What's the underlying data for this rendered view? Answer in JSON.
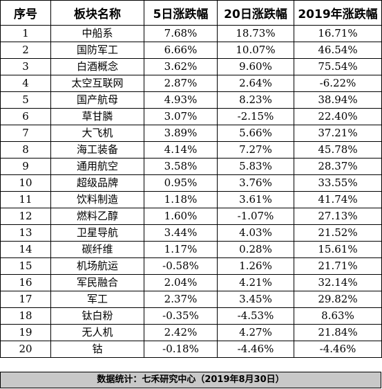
{
  "table": {
    "headers": [
      "序号",
      "板块名称",
      "5日涨跌幅",
      "20日涨跌幅",
      "2019年涨跌幅"
    ],
    "rows": [
      [
        "1",
        "中船系",
        "7.68%",
        "18.73%",
        "16.71%"
      ],
      [
        "2",
        "国防军工",
        "6.66%",
        "10.07%",
        "46.54%"
      ],
      [
        "3",
        "白酒概念",
        "3.62%",
        "9.60%",
        "75.54%"
      ],
      [
        "4",
        "太空互联网",
        "2.87%",
        "2.64%",
        "-6.22%"
      ],
      [
        "5",
        "国产航母",
        "4.93%",
        "8.23%",
        "38.94%"
      ],
      [
        "6",
        "草甘膦",
        "3.07%",
        "-2.15%",
        "22.40%"
      ],
      [
        "7",
        "大飞机",
        "3.89%",
        "5.66%",
        "37.21%"
      ],
      [
        "8",
        "海工装备",
        "4.14%",
        "7.27%",
        "45.78%"
      ],
      [
        "9",
        "通用航空",
        "3.58%",
        "5.83%",
        "28.37%"
      ],
      [
        "10",
        "超级品牌",
        "0.95%",
        "3.76%",
        "33.55%"
      ],
      [
        "11",
        "饮料制造",
        "1.18%",
        "3.61%",
        "41.74%"
      ],
      [
        "12",
        "燃料乙醇",
        "1.60%",
        "-1.07%",
        "27.13%"
      ],
      [
        "13",
        "卫星导航",
        "3.44%",
        "4.03%",
        "21.52%"
      ],
      [
        "14",
        "碳纤维",
        "1.17%",
        "0.28%",
        "15.61%"
      ],
      [
        "15",
        "机场航运",
        "-0.58%",
        "1.26%",
        "21.71%"
      ],
      [
        "16",
        "军民融合",
        "2.04%",
        "4.21%",
        "32.14%"
      ],
      [
        "17",
        "军工",
        "2.37%",
        "3.45%",
        "29.82%"
      ],
      [
        "18",
        "钛白粉",
        "-0.35%",
        "-4.53%",
        "8.63%"
      ],
      [
        "19",
        "无人机",
        "2.42%",
        "4.27%",
        "21.84%"
      ],
      [
        "20",
        "钴",
        "-0.18%",
        "-4.46%",
        "-4.46%"
      ]
    ]
  },
  "footer": {
    "source_text": "数据统计：七禾研究中心（2019年8月30日）"
  },
  "colors": {
    "footer_background": "#c8c8c8",
    "border": "#000000"
  }
}
